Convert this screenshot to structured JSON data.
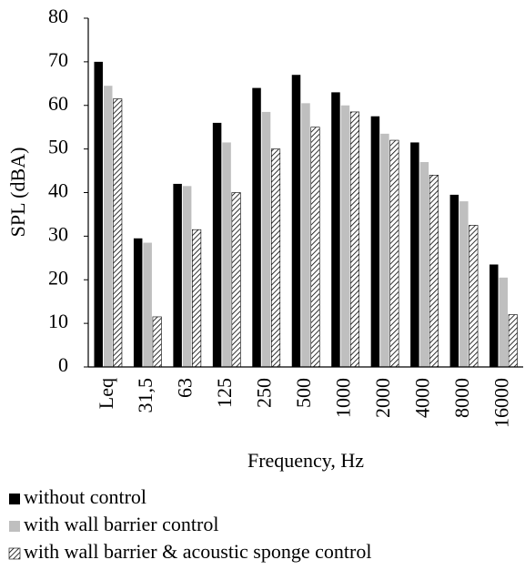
{
  "chart_data": {
    "type": "bar",
    "y_label": "SPL (dBA)",
    "x_label": "Frequency, Hz",
    "categories": [
      "Leq",
      "31,5",
      "63",
      "125",
      "250",
      "500",
      "1000",
      "2000",
      "4000",
      "8000",
      "16000"
    ],
    "series": [
      {
        "name": "without control",
        "color": "#000000",
        "values": [
          70,
          29.5,
          42,
          56,
          64,
          67,
          63,
          57.5,
          51.5,
          39.5,
          23.5
        ]
      },
      {
        "name": "with wall barrier control",
        "color": "#bfbfbf",
        "values": [
          64.5,
          28.5,
          41.5,
          51.5,
          58.5,
          60.5,
          60,
          53.5,
          47,
          38,
          20.5
        ]
      },
      {
        "name": "with wall barrier & acoustic sponge control",
        "color": "#000000",
        "pattern": "hatch",
        "values": [
          61.5,
          11.5,
          31.5,
          40,
          50,
          55,
          58.5,
          52,
          44,
          32.5,
          12
        ]
      }
    ],
    "ylim": [
      0,
      80
    ],
    "yticks": [
      0,
      10,
      20,
      30,
      40,
      50,
      60,
      70,
      80
    ],
    "grid": false,
    "legend": "bottom"
  }
}
